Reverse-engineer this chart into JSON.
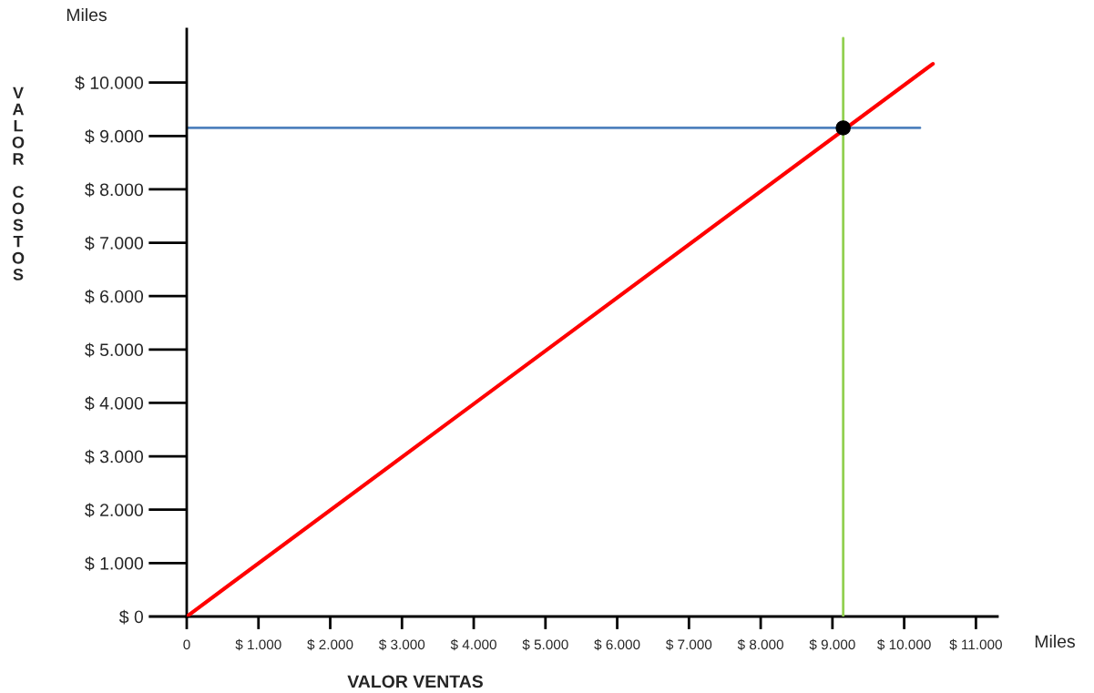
{
  "chart_data": {
    "type": "line",
    "xlabel": "VALOR VENTAS",
    "ylabel": "VALOR COSTOS",
    "xlim": [
      0,
      11300
    ],
    "ylim": [
      0,
      11000
    ],
    "xticks": [
      {
        "value": 0,
        "label": "0"
      },
      {
        "value": 1000,
        "label": "$ 1.000"
      },
      {
        "value": 2000,
        "label": "$ 2.000"
      },
      {
        "value": 3000,
        "label": "$ 3.000"
      },
      {
        "value": 4000,
        "label": "$ 4.000"
      },
      {
        "value": 5000,
        "label": "$ 5.000"
      },
      {
        "value": 6000,
        "label": "$ 6.000"
      },
      {
        "value": 7000,
        "label": "$ 7.000"
      },
      {
        "value": 8000,
        "label": "$ 8.000"
      },
      {
        "value": 9000,
        "label": "$ 9.000"
      },
      {
        "value": 10000,
        "label": "$ 10.000"
      },
      {
        "value": 11000,
        "label": "$ 11.000"
      }
    ],
    "yticks": [
      {
        "value": 0,
        "label": "$ 0"
      },
      {
        "value": 1000,
        "label": "$ 1.000"
      },
      {
        "value": 2000,
        "label": "$ 2.000"
      },
      {
        "value": 3000,
        "label": "$ 3.000"
      },
      {
        "value": 4000,
        "label": "$ 4.000"
      },
      {
        "value": 5000,
        "label": "$ 5.000"
      },
      {
        "value": 6000,
        "label": "$ 6.000"
      },
      {
        "value": 7000,
        "label": "$ 7.000"
      },
      {
        "value": 8000,
        "label": "$ 8.000"
      },
      {
        "value": 9000,
        "label": "$ 9.000"
      },
      {
        "value": 10000,
        "label": "$ 10.000"
      }
    ],
    "grid": false,
    "legend": false,
    "series": [
      {
        "color": "#4f81bd",
        "x": [
          0,
          10220
        ],
        "values": [
          9150,
          9150
        ]
      },
      {
        "color": "#92d050",
        "x": [
          9150,
          9150
        ],
        "values": [
          0,
          10830
        ]
      },
      {
        "color": "#ff0000",
        "x": [
          0,
          10400
        ],
        "values": [
          0,
          10350
        ]
      },
      {
        "type": "scatter",
        "color": "#000000",
        "x": [
          9150
        ],
        "values": [
          9150
        ],
        "marker": "circle"
      }
    ],
    "annotations": [
      "Miles",
      "Miles"
    ]
  }
}
